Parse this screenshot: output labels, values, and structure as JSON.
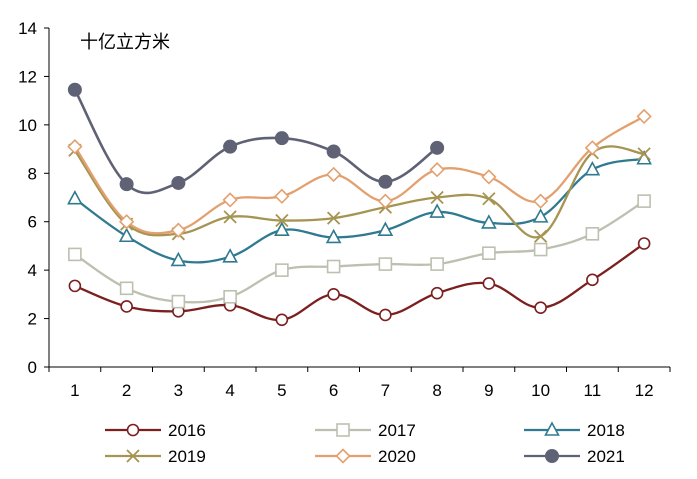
{
  "chart_data": {
    "type": "line",
    "unit_label": "十亿立方米",
    "x": [
      1,
      2,
      3,
      4,
      5,
      6,
      7,
      8,
      9,
      10,
      11,
      12
    ],
    "ylim": [
      0,
      14
    ],
    "yticks": [
      0,
      2,
      4,
      6,
      8,
      10,
      12,
      14
    ],
    "grid": false,
    "legend_position": "bottom",
    "series": [
      {
        "name": "2016",
        "color": "#7B1F1F",
        "marker": "circle-open",
        "values": [
          3.35,
          2.5,
          2.3,
          2.55,
          1.95,
          3.0,
          2.15,
          3.05,
          3.45,
          2.45,
          3.6,
          5.1
        ]
      },
      {
        "name": "2017",
        "color": "#BDC0B0",
        "marker": "square-open",
        "values": [
          4.65,
          3.25,
          2.7,
          2.9,
          4.0,
          4.15,
          4.25,
          4.25,
          4.7,
          4.85,
          5.5,
          6.85
        ]
      },
      {
        "name": "2018",
        "color": "#2F7A91",
        "marker": "triangle-open",
        "values": [
          6.95,
          5.4,
          4.4,
          4.55,
          5.65,
          5.35,
          5.65,
          6.4,
          5.95,
          6.2,
          8.15,
          8.6
        ]
      },
      {
        "name": "2019",
        "color": "#A59452",
        "marker": "x",
        "values": [
          8.95,
          5.9,
          5.5,
          6.2,
          6.05,
          6.15,
          6.6,
          7.0,
          6.95,
          5.4,
          8.85,
          8.8
        ]
      },
      {
        "name": "2020",
        "color": "#E3A06E",
        "marker": "diamond-open",
        "values": [
          9.1,
          6.0,
          5.65,
          6.9,
          7.05,
          7.95,
          6.85,
          8.15,
          7.85,
          6.85,
          9.05,
          10.35
        ]
      },
      {
        "name": "2021",
        "color": "#5F6275",
        "marker": "circle-filled",
        "values": [
          11.45,
          7.55,
          7.6,
          9.1,
          9.45,
          8.9,
          7.65,
          9.05,
          null,
          null,
          null,
          null
        ]
      }
    ]
  }
}
